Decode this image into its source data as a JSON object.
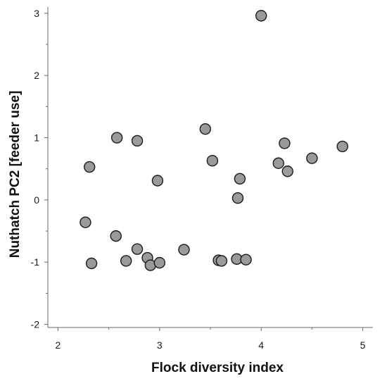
{
  "chart_data": {
    "type": "scatter",
    "title": "",
    "xlabel": "Flock diversity index",
    "ylabel": "Nuthatch PC2 [feeder use]",
    "xlim": [
      1.9,
      5.1
    ],
    "ylim": [
      -2.05,
      3.1
    ],
    "xticks": [
      "2",
      "3",
      "4",
      "5"
    ],
    "yticks": [
      "3",
      "2",
      "1",
      "0",
      "-1",
      "-2"
    ],
    "xtick_values": [
      2,
      3,
      4,
      5
    ],
    "ytick_values": [
      3,
      2,
      1,
      0,
      -1,
      -2
    ],
    "grid": false,
    "marker_color": "#9a9a9a",
    "marker_edge_color": "#1a1a1a",
    "points": [
      {
        "x": 4.0,
        "y": 2.96
      },
      {
        "x": 2.58,
        "y": 1.0
      },
      {
        "x": 2.78,
        "y": 0.95
      },
      {
        "x": 3.45,
        "y": 1.14
      },
      {
        "x": 4.23,
        "y": 0.91
      },
      {
        "x": 4.8,
        "y": 0.86
      },
      {
        "x": 2.31,
        "y": 0.53
      },
      {
        "x": 3.52,
        "y": 0.63
      },
      {
        "x": 4.17,
        "y": 0.59
      },
      {
        "x": 4.5,
        "y": 0.67
      },
      {
        "x": 4.26,
        "y": 0.46
      },
      {
        "x": 2.98,
        "y": 0.31
      },
      {
        "x": 3.79,
        "y": 0.34
      },
      {
        "x": 3.77,
        "y": 0.03
      },
      {
        "x": 2.27,
        "y": -0.36
      },
      {
        "x": 2.57,
        "y": -0.58
      },
      {
        "x": 2.78,
        "y": -0.79
      },
      {
        "x": 3.24,
        "y": -0.8
      },
      {
        "x": 2.88,
        "y": -0.93
      },
      {
        "x": 2.67,
        "y": -0.98
      },
      {
        "x": 2.33,
        "y": -1.02
      },
      {
        "x": 2.91,
        "y": -1.05
      },
      {
        "x": 3.0,
        "y": -1.01
      },
      {
        "x": 3.58,
        "y": -0.97
      },
      {
        "x": 3.61,
        "y": -0.98
      },
      {
        "x": 3.76,
        "y": -0.95
      },
      {
        "x": 3.85,
        "y": -0.96
      }
    ]
  }
}
